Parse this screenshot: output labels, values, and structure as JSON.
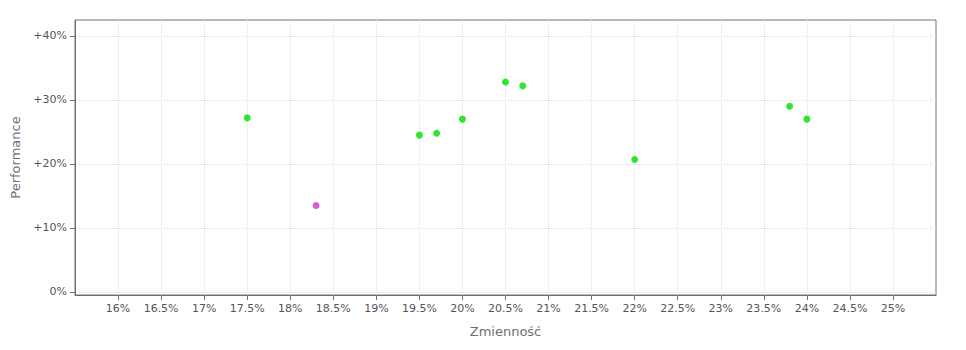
{
  "chart_data": {
    "type": "scatter",
    "xlabel": "Zmienność",
    "ylabel": "Performance",
    "xlim": [
      0.155,
      0.255
    ],
    "ylim": [
      -0.005,
      0.425
    ],
    "xticks": [
      {
        "value": 0.16,
        "label": "16%"
      },
      {
        "value": 0.165,
        "label": "16.5%"
      },
      {
        "value": 0.17,
        "label": "17%"
      },
      {
        "value": 0.175,
        "label": "17.5%"
      },
      {
        "value": 0.18,
        "label": "18%"
      },
      {
        "value": 0.185,
        "label": "18.5%"
      },
      {
        "value": 0.19,
        "label": "19%"
      },
      {
        "value": 0.195,
        "label": "19.5%"
      },
      {
        "value": 0.2,
        "label": "20%"
      },
      {
        "value": 0.205,
        "label": "20.5%"
      },
      {
        "value": 0.21,
        "label": "21%"
      },
      {
        "value": 0.215,
        "label": "21.5%"
      },
      {
        "value": 0.22,
        "label": "22%"
      },
      {
        "value": 0.225,
        "label": "22.5%"
      },
      {
        "value": 0.23,
        "label": "23%"
      },
      {
        "value": 0.235,
        "label": "23.5%"
      },
      {
        "value": 0.24,
        "label": "24%"
      },
      {
        "value": 0.245,
        "label": "24.5%"
      },
      {
        "value": 0.25,
        "label": "25%"
      }
    ],
    "yticks": [
      {
        "value": 0.0,
        "label": "0%"
      },
      {
        "value": 0.1,
        "label": "+10%"
      },
      {
        "value": 0.2,
        "label": "+20%"
      },
      {
        "value": 0.3,
        "label": "+30%"
      },
      {
        "value": 0.4,
        "label": "+40%"
      }
    ],
    "grid": true,
    "marker": "circle",
    "series": [
      {
        "color": "#00dd00",
        "x": [
          0.175,
          0.2,
          0.195,
          0.197,
          0.205,
          0.207,
          0.22,
          0.238,
          0.24
        ],
        "values": [
          0.272,
          0.27,
          0.245,
          0.248,
          0.328,
          0.322,
          0.207,
          0.29,
          0.27
        ]
      },
      {
        "color": "#cc33cc",
        "x": [
          0.183
        ],
        "values": [
          0.135
        ]
      }
    ]
  }
}
